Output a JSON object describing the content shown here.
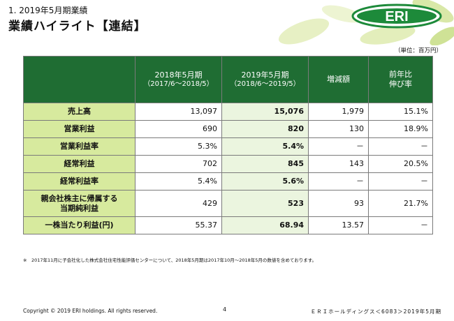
{
  "header": {
    "section": "1. 2019年5月期業績",
    "title": "業績ハイライト【連結】",
    "logo_text": "ERI",
    "unit": "（単位：百万円）"
  },
  "table": {
    "col_headers": [
      {
        "line1": "2018年5月期",
        "line2": "（2017/6～2018/5）"
      },
      {
        "line1": "2019年5月期",
        "line2": "（2018/6～2019/5）"
      },
      {
        "line1": "増減額",
        "line2": ""
      },
      {
        "line1": "前年比",
        "line2": "伸び率"
      }
    ],
    "rows": [
      {
        "label": "売上高",
        "label2": "",
        "prev": "13,097",
        "cur": "15,076",
        "diff": "1,979",
        "rate": "15.1%"
      },
      {
        "label": "営業利益",
        "label2": "",
        "prev": "690",
        "cur": "820",
        "diff": "130",
        "rate": "18.9%"
      },
      {
        "label": "営業利益率",
        "label2": "",
        "prev": "5.3%",
        "cur": "5.4%",
        "diff": "－",
        "rate": "－"
      },
      {
        "label": "経常利益",
        "label2": "",
        "prev": "702",
        "cur": "845",
        "diff": "143",
        "rate": "20.5%"
      },
      {
        "label": "経常利益率",
        "label2": "",
        "prev": "5.4%",
        "cur": "5.6%",
        "diff": "－",
        "rate": "－"
      },
      {
        "label": "親会社株主に帰属する",
        "label2": "当期純利益",
        "prev": "429",
        "cur": "523",
        "diff": "93",
        "rate": "21.7%"
      },
      {
        "label": "一株当たり利益(円)",
        "label2": "",
        "prev": "55.37",
        "cur": "68.94",
        "diff": "13.57",
        "rate": "－"
      }
    ]
  },
  "footnote": "※　2017年11月に子会社化した株式会社住宅性能評価センターについて、2018年5月期は2017年10月～2018年5月の数値を含めております。",
  "footer": {
    "copyright": "Copyright © 2019 ERI holdings. All rights reserved.",
    "page": "4",
    "company": "ＥＲＩホールディングス＜6083＞2019年5月期"
  },
  "colors": {
    "header_green": "#1f6d33",
    "label_green": "#d7ea9e",
    "current_col": "#ebf5df",
    "logo_green": "#1d8a3a"
  }
}
